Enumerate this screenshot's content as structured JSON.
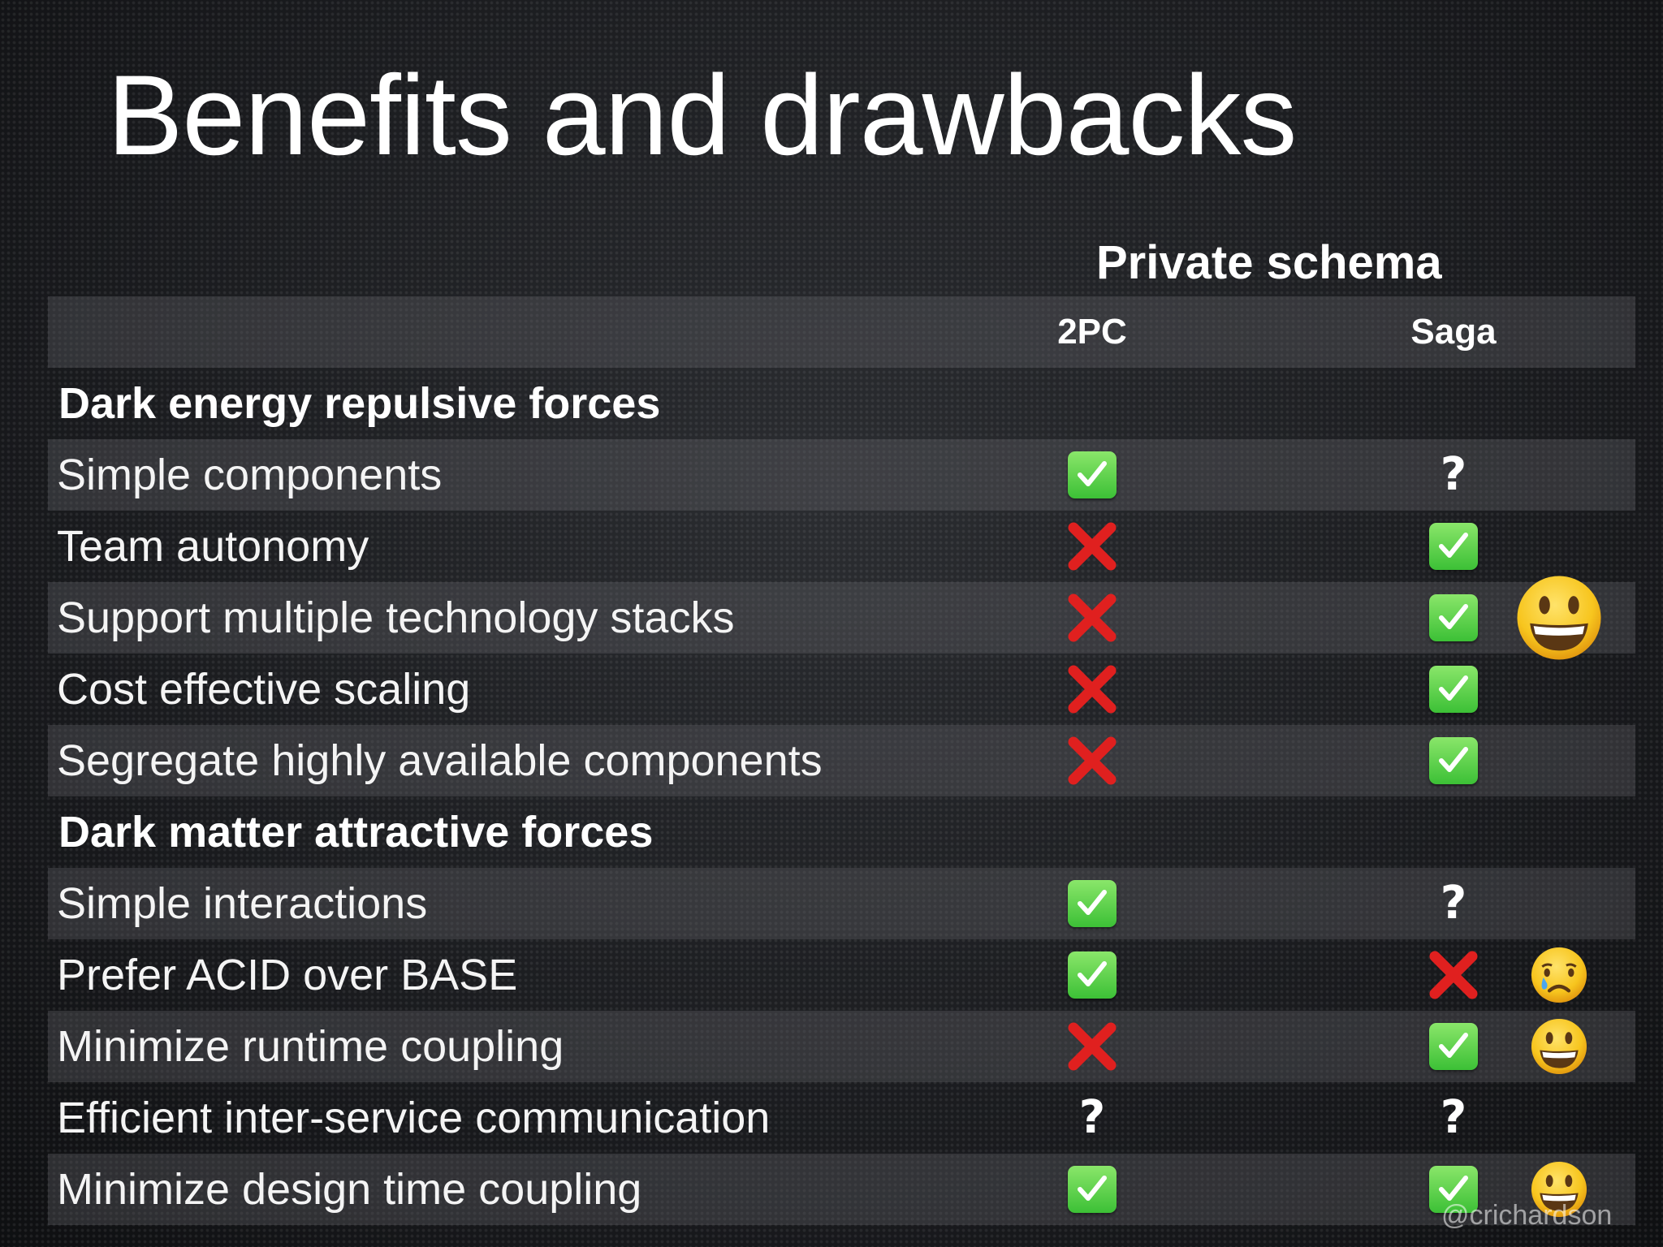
{
  "title": "Benefits and drawbacks",
  "group_header": "Private schema",
  "columns": [
    "2PC",
    "Saga"
  ],
  "sections": [
    {
      "title": "Dark energy repulsive forces",
      "rows": [
        {
          "label": "Simple components",
          "values": [
            "check",
            "question"
          ],
          "reaction": ""
        },
        {
          "label": "Team autonomy",
          "values": [
            "cross",
            "check"
          ],
          "reaction": ""
        },
        {
          "label": "Support multiple technology stacks",
          "values": [
            "cross",
            "check"
          ],
          "reaction": "grinning-face-large"
        },
        {
          "label": "Cost effective scaling",
          "values": [
            "cross",
            "check"
          ],
          "reaction": ""
        },
        {
          "label": "Segregate highly available components",
          "values": [
            "cross",
            "check"
          ],
          "reaction": ""
        }
      ]
    },
    {
      "title": "Dark matter attractive forces",
      "rows": [
        {
          "label": "Simple interactions",
          "values": [
            "check",
            "question"
          ],
          "reaction": ""
        },
        {
          "label": "Prefer ACID over BASE",
          "values": [
            "check",
            "cross"
          ],
          "reaction": "crying-face"
        },
        {
          "label": "Minimize runtime coupling",
          "values": [
            "cross",
            "check"
          ],
          "reaction": "grinning-face"
        },
        {
          "label": "Efficient inter-service communication",
          "values": [
            "question",
            "question"
          ],
          "reaction": ""
        },
        {
          "label": "Minimize design time coupling",
          "values": [
            "check",
            "check"
          ],
          "reaction": "grinning-face"
        }
      ]
    }
  ],
  "symbols": {
    "check": "check-mark-icon",
    "cross": "cross-mark-icon",
    "question": "?"
  },
  "colors": {
    "check_green": "#3cc036",
    "cross_red": "#e0201f",
    "band": "#4a4a4f",
    "emoji_yellow": "#f7c51e"
  },
  "watermark": "@crichardson"
}
